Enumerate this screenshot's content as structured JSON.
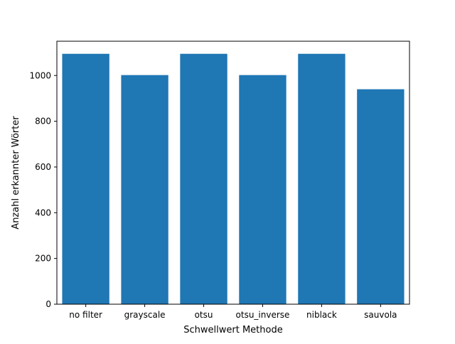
{
  "chart_data": {
    "type": "bar",
    "title": "",
    "xlabel": "Schwellwert Methode",
    "ylabel": "Anzahl erkannter Wörter",
    "categories": [
      "no filter",
      "grayscale",
      "otsu",
      "otsu_inverse",
      "niblack",
      "sauvola"
    ],
    "values": [
      1095,
      1002,
      1095,
      1002,
      1095,
      940
    ],
    "ylim": [
      0,
      1150
    ],
    "yticks": [
      0,
      200,
      400,
      600,
      800,
      1000
    ],
    "ytick_labels": [
      "0",
      "200",
      "400",
      "600",
      "800",
      "1000"
    ],
    "grid": false,
    "legend": "none",
    "bar_color": "#1f77b4"
  }
}
